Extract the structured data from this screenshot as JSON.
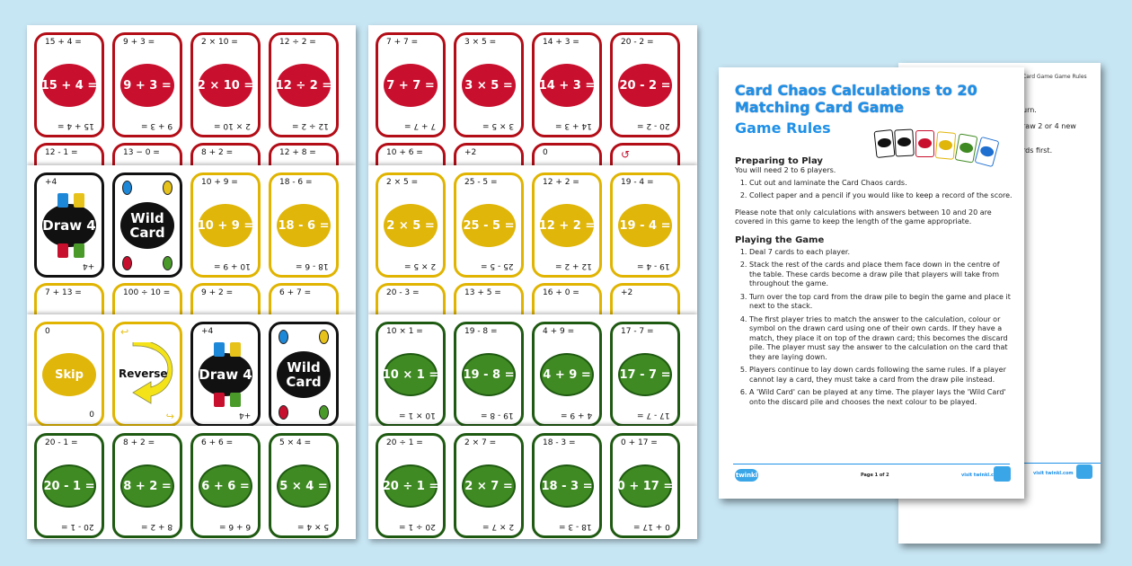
{
  "sheet1": {
    "strip1": [
      {
        "color": "red",
        "calc": "15 + 4 ="
      },
      {
        "color": "red",
        "calc": "9 + 3 ="
      },
      {
        "color": "red",
        "calc": "2 × 10 ="
      },
      {
        "color": "red",
        "calc": "12 ÷ 2 ="
      }
    ],
    "strip1_peek": [
      "12 - 1 =",
      "13 − 0 =",
      "8 + 2 =",
      "12 + 8 ="
    ],
    "strip2": [
      {
        "type": "draw4",
        "color": "black",
        "tl": "+4",
        "label": "Draw 4"
      },
      {
        "type": "wild",
        "color": "black",
        "label1": "Wild",
        "label2": "Card"
      },
      {
        "color": "yellow",
        "calc": "10 + 9 ="
      },
      {
        "color": "yellow",
        "calc": "18 - 6 ="
      }
    ],
    "strip2_peek": [
      "7 + 13 =",
      "100 ÷ 10 =",
      "9 + 2 =",
      "6 + 7 ="
    ],
    "strip3": [
      {
        "type": "skip",
        "color": "yellow",
        "tl": "0",
        "label": "Skip"
      },
      {
        "type": "reverse",
        "color": "yellow",
        "label": "Reverse"
      },
      {
        "type": "draw4",
        "color": "black",
        "tl": "+4",
        "label": "Draw 4"
      },
      {
        "type": "wild",
        "color": "black",
        "label1": "Wild",
        "label2": "Card"
      }
    ],
    "strip4": [
      {
        "color": "green",
        "calc": "20 - 1 ="
      },
      {
        "color": "green",
        "calc": "8 + 2 ="
      },
      {
        "color": "green",
        "calc": "6 + 6 ="
      },
      {
        "color": "green",
        "calc": "5 × 4 ="
      }
    ]
  },
  "sheet2": {
    "strip1": [
      {
        "color": "red",
        "calc": "7 + 7 ="
      },
      {
        "color": "red",
        "calc": "3 × 5 ="
      },
      {
        "color": "red",
        "calc": "14 + 3 ="
      },
      {
        "color": "red",
        "calc": "20 - 2 ="
      }
    ],
    "strip1_peek": [
      "10 + 6 =",
      "+2",
      "0",
      "↺"
    ],
    "strip2": [
      {
        "color": "yellow",
        "calc": "2 × 5 ="
      },
      {
        "color": "yellow",
        "calc": "25 - 5 ="
      },
      {
        "color": "yellow",
        "calc": "12 + 2 ="
      },
      {
        "color": "yellow",
        "calc": "19 - 4 ="
      }
    ],
    "strip2_peek": [
      "20 - 3 =",
      "13 + 5 =",
      "16 + 0 =",
      "+2"
    ],
    "strip3": [
      {
        "color": "green",
        "calc": "10 × 1 ="
      },
      {
        "color": "green",
        "calc": "19 - 8 ="
      },
      {
        "color": "green",
        "calc": "4 + 9 ="
      },
      {
        "color": "green",
        "calc": "17 - 7 ="
      }
    ],
    "strip4": [
      {
        "color": "green",
        "calc": "20 ÷ 1 ="
      },
      {
        "color": "green",
        "calc": "2 × 7 ="
      },
      {
        "color": "green",
        "calc": "18 - 3 ="
      },
      {
        "color": "green",
        "calc": "0 + 17 ="
      }
    ]
  },
  "rules": {
    "title_line1": "Card Chaos Calculations to 20",
    "title_line2": "Matching Card Game",
    "subtitle": "Game Rules",
    "section1_heading": "Preparing to Play",
    "section1_intro": "You will need 2 to 6 players.",
    "section1_steps": [
      "Cut out and laminate the Card Chaos cards.",
      "Collect paper and a pencil if you would like to keep a record of the score."
    ],
    "note": "Please note that only calculations with answers between 10 and 20 are covered in this game to keep the length of the game appropriate.",
    "section2_heading": "Playing the Game",
    "section2_steps": [
      "Deal 7 cards to each player.",
      "Stack the rest of the cards and place them face down in the centre of the table. These cards become a draw pile that players will take from throughout the game.",
      "Turn over the top card from the draw pile to begin the game and place it next to the stack.",
      "The first player tries to match the answer to the calculation, colour or symbol on the drawn card using one of their own cards. If they have a match, they place it on top of the drawn card; this becomes the discard pile. The player must say the answer to the calculation on the card that they are laying down.",
      "Players continue to lay down cards following the same rules. If a player cannot lay a card, they must take a card from the draw pile instead.",
      "A 'Wild Card' can be played at any time. The player lays the 'Wild Card' onto the discard pile and chooses the next colour to be played."
    ],
    "footer_logo": "twinkl",
    "footer_page": "Page 1 of 2",
    "footer_url": "visit twinkl.com"
  },
  "rules_back": {
    "header": "Card Game Game Rules",
    "line1": "urn.",
    "line2": "raw 2 or 4 new",
    "line3": "rds first.",
    "footer_url": "visit twinkl.com"
  },
  "colors": {
    "background": "#c7e6f4",
    "red": "#c8102e",
    "yellow": "#e0b60a",
    "green": "#3f8a22",
    "blue": "#1e90e8"
  }
}
